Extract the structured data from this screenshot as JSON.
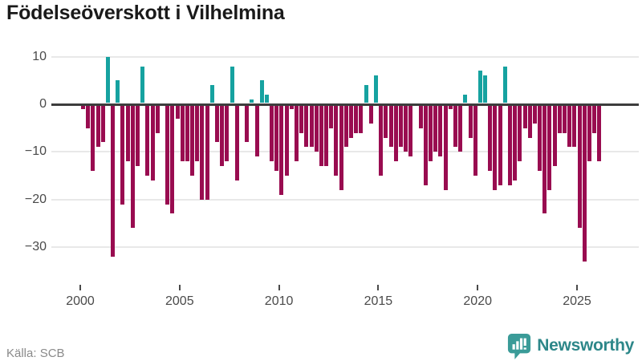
{
  "title": "Födelseöverskott i Vilhelmina",
  "source_label": "Källa: SCB",
  "brand": {
    "name": "Newsworthy",
    "logo_color": "#3a9b98",
    "text_color": "#2d8789"
  },
  "chart_data": {
    "type": "bar",
    "title": "Födelseöverskott i Vilhelmina",
    "xlabel": "",
    "ylabel": "",
    "x_tick_labels": [
      "2000",
      "2005",
      "2010",
      "2015",
      "2020",
      "2025"
    ],
    "y_tick_labels": [
      "10",
      "0",
      "−10",
      "−20",
      "−30"
    ],
    "y_ticks": [
      10,
      0,
      -10,
      -20,
      -30
    ],
    "ylim": [
      -35,
      12
    ],
    "grid": "horizontal",
    "legend": "none",
    "colors": {
      "positive": "#16a2a0",
      "negative": "#990c50",
      "zero_line": "#3d3d3d",
      "grid_line": "#e8e8e8"
    },
    "series": [
      {
        "name": "Födelseöverskott per kvartal",
        "periods": [
          "2000K1",
          "2000K2",
          "2000K3",
          "2000K4",
          "2001K1",
          "2001K2",
          "2001K3",
          "2001K4",
          "2002K1",
          "2002K2",
          "2002K3",
          "2002K4",
          "2003K1",
          "2003K2",
          "2003K3",
          "2003K4",
          "2004K1",
          "2004K2",
          "2004K3",
          "2004K4",
          "2005K1",
          "2005K2",
          "2005K3",
          "2005K4",
          "2006K1",
          "2006K2",
          "2006K3",
          "2006K4",
          "2007K1",
          "2007K2",
          "2007K3",
          "2007K4",
          "2008K1",
          "2008K2",
          "2008K3",
          "2008K4",
          "2009K1",
          "2009K2",
          "2009K3",
          "2009K4",
          "2010K1",
          "2010K2",
          "2010K3",
          "2010K4",
          "2011K1",
          "2011K2",
          "2011K3",
          "2011K4",
          "2012K1",
          "2012K2",
          "2012K3",
          "2012K4",
          "2013K1",
          "2013K2",
          "2013K3",
          "2013K4",
          "2014K1",
          "2014K2",
          "2014K3",
          "2014K4",
          "2015K1",
          "2015K2",
          "2015K3",
          "2015K4",
          "2016K1",
          "2016K2",
          "2016K3",
          "2016K4",
          "2017K1",
          "2017K2",
          "2017K3",
          "2017K4",
          "2018K1",
          "2018K2",
          "2018K3",
          "2018K4",
          "2019K1",
          "2019K2",
          "2019K3",
          "2019K4",
          "2020K1",
          "2020K2",
          "2020K3",
          "2020K4",
          "2021K1",
          "2021K2",
          "2021K3",
          "2021K4",
          "2022K1",
          "2022K2",
          "2022K3",
          "2022K4",
          "2023K1",
          "2023K2",
          "2023K3",
          "2023K4",
          "2024K1",
          "2024K2",
          "2024K3",
          "2024K4",
          "2025K1",
          "2025K2",
          "2025K3",
          "2025K4",
          "2026K1"
        ],
        "values": [
          -1,
          -5,
          -14,
          -9,
          -8,
          10,
          -32,
          5,
          -21,
          -12,
          -26,
          -13,
          8,
          -15,
          -16,
          -6,
          0,
          -21,
          -23,
          -3,
          -12,
          -12,
          -15,
          -12,
          -20,
          -20,
          4,
          -8,
          -13,
          -12,
          8,
          -16,
          0,
          -8,
          1,
          -11,
          5,
          2,
          -12,
          -14,
          -19,
          -15,
          -1,
          -12,
          -6,
          -9,
          -9,
          -10,
          -13,
          -13,
          -5,
          -15,
          -18,
          -9,
          -7,
          -6,
          -6,
          4,
          -4,
          6,
          -15,
          -7,
          -9,
          -12,
          -9,
          -10,
          -11,
          0,
          -5,
          -17,
          -12,
          -10,
          -11,
          -18,
          -1,
          -9,
          -10,
          2,
          -7,
          -15,
          7,
          6,
          -14,
          -18,
          -17,
          8,
          -17,
          -16,
          -12,
          -5,
          -7,
          -4,
          -14,
          -23,
          -18,
          -13,
          -6,
          -6,
          -9,
          -9,
          -26,
          -33,
          -12,
          -6,
          -12
        ]
      }
    ]
  }
}
